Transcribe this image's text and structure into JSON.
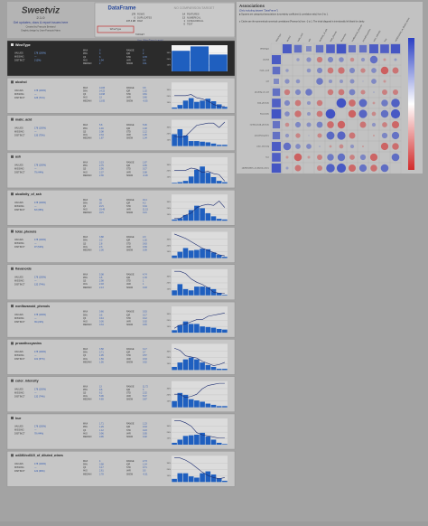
{
  "header": {
    "logo": "Sweetviz",
    "version": "2.1.0",
    "link": "Get updates, docs & report issues here",
    "credit1": "Created by Francois Bertrand",
    "credit2": "Graphic design by Jean-Francois Hains"
  },
  "dataframe": {
    "title": "DataFrame",
    "compare": "NO COMPARISON TARGET",
    "target_button": "WineType",
    "rows": [
      [
        "178",
        "ROWS"
      ],
      [
        "0",
        "DUPLICATES"
      ],
      [
        "137.4 kB",
        "RAM"
      ],
      [
        "14",
        "FEATURES"
      ],
      [
        "13",
        "NUMERICAL"
      ],
      [
        "1",
        "CATEGORICAL"
      ],
      [
        "0",
        "TEXT"
      ]
    ],
    "target_label": "TARGET",
    "target_note": "Avg. WineType (y-axis)"
  },
  "stat_labels_left": [
    "VALUES",
    "MISSING",
    "DISTINCT"
  ],
  "stat_labels_a": [
    "MAX",
    "95%",
    "Q3",
    "AVG",
    "MEDIAN"
  ],
  "stat_labels_b": [
    "RANGE",
    "IQR",
    "STD",
    "VAR",
    "SKEW"
  ],
  "values_text": "178 (100%)",
  "missing_text": "---",
  "hist_ylim": [
    0,
    42
  ],
  "hist_yticks": [
    {
      "value": 10,
      "label": "10%"
    },
    {
      "value": 20,
      "label": "20%"
    },
    {
      "value": 30,
      "label": "30%"
    }
  ],
  "target_ylim": [
    0.8,
    3.2
  ],
  "bar_color": "#1f5fbf",
  "line_color": "#1c2c70",
  "features": [
    {
      "name": "WineType",
      "distinct": "3 (2%)",
      "stats_a": [
        3,
        3,
        3,
        1.94,
        2
      ],
      "stats_b": [
        2,
        2,
        0.78,
        0.6,
        0.11
      ],
      "hist": [
        33,
        40,
        27
      ],
      "target": null
    },
    {
      "name": "alcohol",
      "distinct": "126 (71%)",
      "stats_a": [
        14.83,
        14.22,
        13.68,
        13.0,
        13.05
      ],
      "stats_b": [
        3.8,
        1.32,
        0.81,
        0.66,
        -0.05
      ],
      "hist": [
        2,
        6,
        13,
        17,
        11,
        13,
        16,
        12,
        7,
        3
      ],
      "target": [
        2,
        2,
        2,
        2.1,
        1.8,
        1.7,
        1.5,
        1.2,
        1,
        1
      ]
    },
    {
      "name": "malic_acid",
      "distinct": "133 (75%)",
      "stats_a": [
        5.8,
        4.46,
        3.08,
        2.34,
        1.87
      ],
      "stats_b": [
        5.06,
        1.48,
        1.12,
        1.25,
        1.04
      ],
      "hist": [
        19,
        27,
        17,
        8,
        8,
        7,
        6,
        4,
        2,
        2
      ],
      "target": [
        1.7,
        1.6,
        1.7,
        2.2,
        2.7,
        2.8,
        2.9,
        2.9,
        2.5,
        3
      ]
    },
    {
      "name": "ash",
      "distinct": "79 (44%)",
      "stats_a": [
        3.23,
        2.75,
        2.56,
        2.37,
        2.36
      ],
      "stats_b": [
        1.87,
        0.35,
        0.27,
        0.08,
        -0.18
      ],
      "hist": [
        1,
        2,
        4,
        11,
        22,
        27,
        17,
        10,
        4,
        2
      ],
      "target": [
        2,
        2,
        2,
        2.2,
        2.1,
        1.8,
        1.9,
        1.7,
        1.6,
        1
      ]
    },
    {
      "name": "alcalinity_of_ash",
      "distinct": "63 (35%)",
      "stats_a": [
        30.0,
        25.0,
        21.5,
        19.49,
        19.5
      ],
      "stats_b": [
        19.4,
        4.3,
        3.34,
        11.15,
        0.21
      ],
      "hist": [
        2,
        4,
        9,
        17,
        24,
        20,
        12,
        7,
        3,
        2
      ],
      "target": [
        1,
        1,
        1.3,
        1.5,
        2,
        2.2,
        2.3,
        2.2,
        2.6,
        2
      ]
    },
    {
      "name": "total_phenols",
      "distinct": "97 (54%)",
      "stats_a": [
        3.88,
        3.3,
        2.8,
        2.3,
        2.36
      ],
      "stats_b": [
        2.9,
        1.02,
        0.63,
        0.39,
        0.09
      ],
      "hist": [
        4,
        10,
        16,
        12,
        13,
        15,
        14,
        9,
        5,
        2
      ],
      "target": [
        3,
        2.8,
        2.6,
        2.3,
        2,
        1.7,
        1.5,
        1.3,
        1.1,
        1
      ]
    },
    {
      "name": "flavanoids",
      "distinct": "132 (74%)",
      "stats_a": [
        5.08,
        3.5,
        2.98,
        2.03,
        2.13
      ],
      "stats_b": [
        4.74,
        1.78,
        1.0,
        1.0,
        0.03
      ],
      "hist": [
        8,
        18,
        10,
        8,
        14,
        14,
        13,
        10,
        4,
        1
      ],
      "target": [
        3,
        3,
        2.8,
        2.3,
        2,
        1.8,
        1.5,
        1.1,
        1,
        1
      ]
    },
    {
      "name": "nonflavanoid_phenols",
      "distinct": "39 (22%)",
      "stats_a": [
        0.66,
        0.6,
        0.44,
        0.36,
        0.34
      ],
      "stats_b": [
        0.53,
        0.17,
        0.12,
        0.02,
        0.45
      ],
      "hist": [
        4,
        12,
        18,
        14,
        14,
        10,
        9,
        8,
        6,
        5
      ],
      "target": [
        1.2,
        1.5,
        1.6,
        1.8,
        2,
        2,
        2.3,
        2.4,
        2.5,
        2.6
      ]
    },
    {
      "name": "proanthocyanins",
      "distinct": "101 (57%)",
      "stats_a": [
        3.58,
        2.71,
        1.95,
        1.59,
        1.56
      ],
      "stats_b": [
        3.17,
        0.7,
        0.57,
        0.33,
        0.52
      ],
      "hist": [
        5,
        12,
        17,
        20,
        17,
        12,
        8,
        5,
        2,
        2
      ],
      "target": [
        2.8,
        2.6,
        2.1,
        2,
        1.9,
        1.6,
        1.4,
        1.2,
        1.3,
        1.5
      ]
    },
    {
      "name": "color_intensity",
      "distinct": "132 (74%)",
      "stats_a": [
        13.0,
        9.6,
        6.2,
        5.06,
        4.69
      ],
      "stats_b": [
        11.72,
        3.0,
        2.32,
        5.37,
        0.87
      ],
      "hist": [
        10,
        23,
        20,
        13,
        11,
        9,
        6,
        4,
        2,
        2
      ],
      "target": [
        2,
        2,
        1.7,
        1.8,
        2,
        2.5,
        2.8,
        2.9,
        3,
        3
      ]
    },
    {
      "name": "hue",
      "distinct": "78 (44%)",
      "stats_a": [
        1.71,
        1.29,
        1.12,
        0.96,
        0.96
      ],
      "stats_b": [
        1.23,
        0.33,
        0.23,
        0.05,
        0.02
      ],
      "hist": [
        3,
        8,
        14,
        15,
        16,
        19,
        13,
        8,
        3,
        1
      ],
      "target": [
        3,
        3,
        2.8,
        2.5,
        1.9,
        1.7,
        1.6,
        1.5,
        1.4,
        1.4
      ]
    },
    {
      "name": "od280/od315_of_diluted_wines",
      "distinct": "122 (69%)",
      "stats_a": [
        4.0,
        3.58,
        3.17,
        2.61,
        2.78
      ],
      "stats_b": [
        2.73,
        1.24,
        0.71,
        0.5,
        -0.31
      ],
      "hist": [
        5,
        14,
        14,
        9,
        7,
        14,
        17,
        12,
        6,
        2
      ],
      "target": [
        3,
        3,
        2.8,
        2.5,
        2.1,
        1.7,
        1.4,
        1.2,
        1.1,
        1.2
      ]
    }
  ],
  "associations": {
    "title": "Associations",
    "note1": "[Only including dataset \"DataFrame\"]",
    "note2": "■ Squares are categorical associations (uncertainty coefficient & correlation ratio) from 0 to 1.",
    "note3": "● Circles are the symmetrical numerical correlations (Pearson's) from -1 to 1. The trivial diagonal is intentionally left blank for clarity.",
    "labels": [
      "WineType",
      "alcohol",
      "malic_acid",
      "ash",
      "alcalinity_of_ash",
      "total_phenols",
      "flavanoids",
      "nonflavanoid_phenols",
      "proanthocyanins",
      "color_intensity",
      "hue",
      "od280/od315_of_diluted_wines"
    ],
    "positive_color": "#2a3fc4",
    "negative_color": "#d22a2a",
    "scale": [
      -1,
      1
    ],
    "matrix": [
      [
        1,
        0.77,
        0.56,
        0.27,
        0.54,
        0.72,
        0.85,
        0.51,
        0.53,
        0.76,
        0.72,
        0.82
      ],
      [
        0.77,
        1,
        0.09,
        0.21,
        -0.31,
        0.29,
        0.24,
        -0.16,
        0.14,
        0.55,
        -0.07,
        0.07
      ],
      [
        0.56,
        0.09,
        1,
        0.16,
        0.29,
        -0.34,
        -0.41,
        0.29,
        -0.22,
        0.25,
        -0.56,
        -0.37
      ],
      [
        0.27,
        0.21,
        0.16,
        1,
        0.44,
        0.13,
        0.12,
        0.19,
        0.01,
        0.26,
        -0.07,
        0.0
      ],
      [
        0.54,
        -0.31,
        0.29,
        0.44,
        1,
        -0.32,
        -0.35,
        0.36,
        -0.2,
        0.02,
        -0.27,
        -0.28
      ],
      [
        0.72,
        0.29,
        -0.34,
        0.13,
        -0.32,
        1,
        0.86,
        -0.45,
        0.61,
        -0.06,
        0.43,
        0.7
      ],
      [
        0.85,
        0.24,
        -0.41,
        0.12,
        -0.35,
        0.86,
        1,
        -0.54,
        0.65,
        -0.17,
        0.54,
        0.79
      ],
      [
        0.51,
        -0.16,
        0.29,
        0.19,
        0.36,
        -0.45,
        -0.54,
        1,
        -0.37,
        0.14,
        -0.26,
        -0.5
      ],
      [
        0.53,
        0.14,
        -0.22,
        0.01,
        -0.2,
        0.61,
        0.65,
        -0.37,
        1,
        -0.03,
        0.3,
        0.52
      ],
      [
        0.76,
        0.55,
        0.25,
        0.26,
        0.02,
        -0.06,
        -0.17,
        0.14,
        -0.03,
        1,
        -0.52,
        -0.43
      ],
      [
        0.72,
        -0.07,
        -0.56,
        -0.07,
        -0.27,
        0.43,
        0.54,
        -0.26,
        0.3,
        -0.52,
        1,
        0.57
      ],
      [
        0.82,
        0.07,
        -0.37,
        0.0,
        -0.28,
        0.7,
        0.79,
        -0.5,
        0.52,
        -0.43,
        0.57,
        1
      ]
    ]
  }
}
